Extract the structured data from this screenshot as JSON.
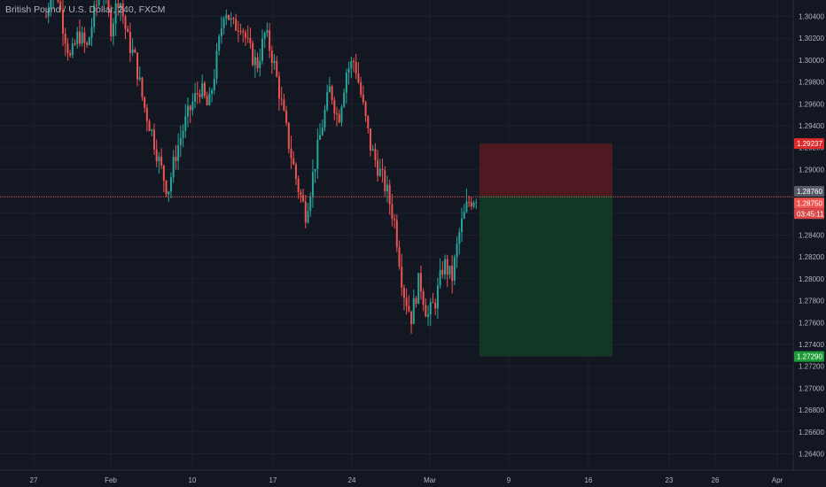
{
  "header": {
    "title": "British Pound / U.S. Dollar, 240, FXCM"
  },
  "price_labels": {
    "stop_loss": "1.29237",
    "current_top": "1.28760",
    "current": "1.28750",
    "countdown": "03:45:11",
    "take_profit": "1.27290"
  },
  "colors": {
    "background": "#131722",
    "up": "#26a69a",
    "down": "#ef5350",
    "stop_zone": "#5a1a22",
    "target_zone": "#143d26",
    "axis_text": "#b2b5be"
  },
  "chart_data": {
    "type": "candlestick",
    "symbol": "GBPUSD",
    "title": "British Pound / U.S. Dollar, 240, FXCM",
    "timeframe": "240",
    "ylim": [
      1.2625,
      1.3055
    ],
    "y_ticks": [
      "1.30400",
      "1.30200",
      "1.30000",
      "1.29800",
      "1.29600",
      "1.29400",
      "1.29200",
      "1.29000",
      "1.28800",
      "1.28600",
      "1.28400",
      "1.28200",
      "1.28000",
      "1.27800",
      "1.27600",
      "1.27400",
      "1.27200",
      "1.27000",
      "1.26800",
      "1.26600",
      "1.26400"
    ],
    "x_ticks": [
      "27",
      "Feb",
      "10",
      "17",
      "24",
      "Mar",
      "9",
      "16",
      "23",
      "26",
      "Apr"
    ],
    "position": {
      "type": "short",
      "entry": 1.2876,
      "stop": 1.29237,
      "target": 1.2729
    },
    "current_price": 1.2875,
    "price_path": [
      [
        0,
        1.304
      ],
      [
        2,
        1.308
      ],
      [
        4,
        1.3035
      ],
      [
        6,
        1.3
      ],
      [
        8,
        1.3025
      ],
      [
        10,
        1.301
      ],
      [
        12,
        1.3045
      ],
      [
        14,
        1.307
      ],
      [
        16,
        1.303
      ],
      [
        18,
        1.306
      ],
      [
        20,
        1.302
      ],
      [
        22,
        1.3
      ],
      [
        24,
        1.296
      ],
      [
        26,
        1.2935
      ],
      [
        28,
        1.2905
      ],
      [
        30,
        1.288
      ],
      [
        32,
        1.2915
      ],
      [
        34,
        1.294
      ],
      [
        36,
        1.296
      ],
      [
        38,
        1.2975
      ],
      [
        40,
        1.2955
      ],
      [
        42,
        1.3
      ],
      [
        44,
        1.305
      ],
      [
        46,
        1.303
      ],
      [
        48,
        1.3035
      ],
      [
        50,
        1.301
      ],
      [
        52,
        1.2995
      ],
      [
        54,
        1.3025
      ],
      [
        56,
        1.3
      ],
      [
        58,
        1.296
      ],
      [
        60,
        1.292
      ],
      [
        62,
        1.2885
      ],
      [
        64,
        1.286
      ],
      [
        66,
        1.29
      ],
      [
        68,
        1.294
      ],
      [
        70,
        1.2975
      ],
      [
        72,
        1.2945
      ],
      [
        74,
        1.299
      ],
      [
        76,
        1.3
      ],
      [
        78,
        1.296
      ],
      [
        80,
        1.292
      ],
      [
        82,
        1.29
      ],
      [
        84,
        1.288
      ],
      [
        86,
        1.285
      ],
      [
        88,
        1.279
      ],
      [
        90,
        1.2765
      ],
      [
        92,
        1.28
      ],
      [
        94,
        1.2765
      ],
      [
        96,
        1.278
      ],
      [
        98,
        1.2815
      ],
      [
        100,
        1.28
      ],
      [
        102,
        1.2845
      ],
      [
        104,
        1.287
      ],
      [
        106,
        1.2876
      ]
    ]
  }
}
